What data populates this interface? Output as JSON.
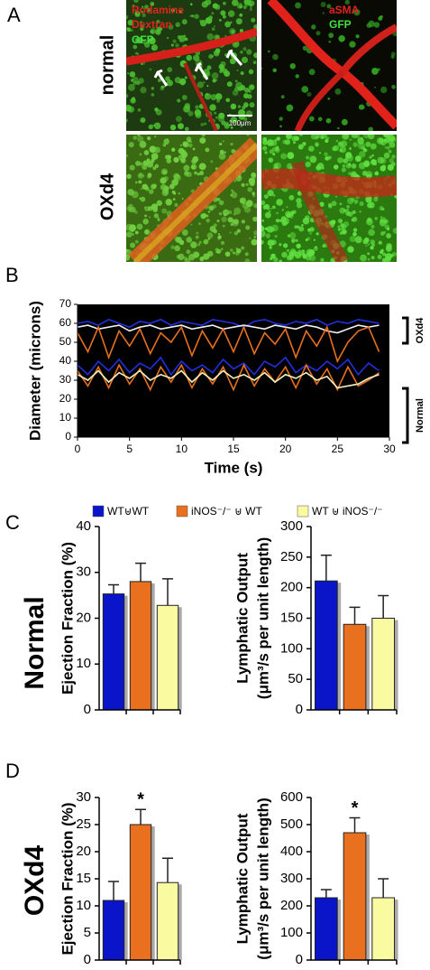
{
  "panels": [
    "A",
    "B",
    "C",
    "D"
  ],
  "panel_a": {
    "image_labels": [
      "Rodamine",
      "Dextran",
      "GFP",
      "aSMA",
      "GFP"
    ],
    "scale_bar": "100μm",
    "row_labels": [
      "normal",
      "OXd4"
    ]
  },
  "panel_b_groups": [
    "OXd4",
    "Normal"
  ],
  "row_labels": [
    "Normal",
    "OXd4"
  ],
  "legend": [
    {
      "label": "WT⊎WT",
      "color": "#0a14c8"
    },
    {
      "label": "iNOS⁻/⁻ ⊎ WT",
      "color": "#e8701e"
    },
    {
      "label": "WT ⊎ iNOS⁻/⁻",
      "color": "#fafaa0"
    }
  ],
  "chart_data": [
    {
      "type": "line",
      "ylabel": "Diameter (microns)",
      "xlabel": "Time (s)",
      "background": "#000000",
      "x": [
        0,
        1,
        2,
        3,
        4,
        5,
        6,
        7,
        8,
        9,
        10,
        11,
        12,
        13,
        14,
        15,
        16,
        17,
        18,
        19,
        20,
        21,
        22,
        23,
        24,
        25,
        26,
        27,
        28,
        29
      ],
      "xlim": [
        0,
        30
      ],
      "xticks": [
        0,
        5,
        10,
        15,
        20,
        25,
        30
      ],
      "ylim": [
        0,
        70
      ],
      "yticks": [
        0,
        10,
        20,
        30,
        40,
        50,
        60,
        70
      ],
      "series": [
        {
          "color": "#2030e0",
          "values": [
            60,
            61,
            59,
            62,
            60,
            58,
            61,
            60,
            62,
            59,
            61,
            60,
            59,
            62,
            61,
            60,
            58,
            61,
            62,
            60,
            59,
            61,
            60,
            62,
            59,
            61,
            60,
            62,
            61,
            60
          ]
        },
        {
          "color": "#f0f0f0",
          "values": [
            58,
            59,
            57,
            58,
            59,
            56,
            58,
            59,
            57,
            58,
            59,
            57,
            58,
            59,
            57,
            58,
            59,
            58,
            57,
            59,
            58,
            57,
            59,
            58,
            56,
            55,
            57,
            59,
            58,
            59
          ]
        },
        {
          "color": "#e8701e",
          "values": [
            55,
            45,
            58,
            42,
            56,
            48,
            57,
            44,
            55,
            50,
            58,
            43,
            56,
            47,
            57,
            45,
            58,
            44,
            55,
            49,
            57,
            42,
            56,
            48,
            58,
            40,
            50,
            56,
            58,
            45
          ]
        },
        {
          "color": "#2030e0",
          "values": [
            38,
            33,
            40,
            35,
            41,
            34,
            39,
            36,
            42,
            33,
            40,
            35,
            38,
            34,
            41,
            36,
            39,
            33,
            40,
            37,
            42,
            34,
            38,
            35,
            40,
            36,
            41,
            33,
            39,
            35
          ]
        },
        {
          "color": "#e8701e",
          "values": [
            35,
            27,
            37,
            26,
            38,
            28,
            36,
            25,
            37,
            29,
            38,
            26,
            36,
            28,
            37,
            25,
            38,
            27,
            36,
            29,
            37,
            26,
            38,
            28,
            36,
            25,
            37,
            27,
            30,
            34
          ]
        },
        {
          "color": "#f0f0c0",
          "values": [
            33,
            30,
            35,
            29,
            34,
            31,
            35,
            30,
            33,
            31,
            35,
            29,
            34,
            30,
            35,
            31,
            33,
            30,
            34,
            29,
            33,
            31,
            34,
            30,
            32,
            26,
            27,
            28,
            31,
            33
          ]
        }
      ]
    },
    {
      "type": "bar",
      "ylabel": [
        "Ejection Fraction (%)"
      ],
      "categories": [
        null,
        null,
        null
      ],
      "colors": [
        "#0a14c8",
        "#e8701e",
        "#fafaa0"
      ],
      "values": [
        25.3,
        28,
        22.8
      ],
      "errors": [
        2,
        4,
        5.8
      ],
      "ylim": [
        0,
        40
      ],
      "yticks": [
        0,
        10,
        20,
        30,
        40
      ]
    },
    {
      "type": "bar",
      "ylabel": [
        "Lymphatic Output",
        "(μm³/s per unit length)"
      ],
      "categories": [
        null,
        null,
        null
      ],
      "colors": [
        "#0a14c8",
        "#e8701e",
        "#fafaa0"
      ],
      "values": [
        211,
        140,
        150
      ],
      "errors": [
        42,
        28,
        37
      ],
      "ylim": [
        0,
        300
      ],
      "yticks": [
        0,
        50,
        100,
        150,
        200,
        250,
        300
      ]
    },
    {
      "type": "bar",
      "ylabel": [
        "Ejection Fraction (%)"
      ],
      "categories": [
        null,
        null,
        null
      ],
      "colors": [
        "#0a14c8",
        "#e8701e",
        "#fafaa0"
      ],
      "values": [
        11,
        25,
        14.3
      ],
      "errors": [
        3.5,
        2.8,
        4.5
      ],
      "ylim": [
        0,
        30
      ],
      "yticks": [
        0,
        5,
        10,
        15,
        20,
        25,
        30
      ],
      "annotations": [
        {
          "text": "*",
          "index": 1
        }
      ]
    },
    {
      "type": "bar",
      "ylabel": [
        "Lymphatic Output",
        "(μm³/s per unit length)"
      ],
      "categories": [
        null,
        null,
        null
      ],
      "colors": [
        "#0a14c8",
        "#e8701e",
        "#fafaa0"
      ],
      "values": [
        230,
        470,
        230
      ],
      "errors": [
        30,
        55,
        70
      ],
      "ylim": [
        0,
        600
      ],
      "yticks": [
        0,
        100,
        200,
        300,
        400,
        500,
        600
      ],
      "annotations": [
        {
          "text": "*",
          "index": 1
        }
      ]
    }
  ]
}
